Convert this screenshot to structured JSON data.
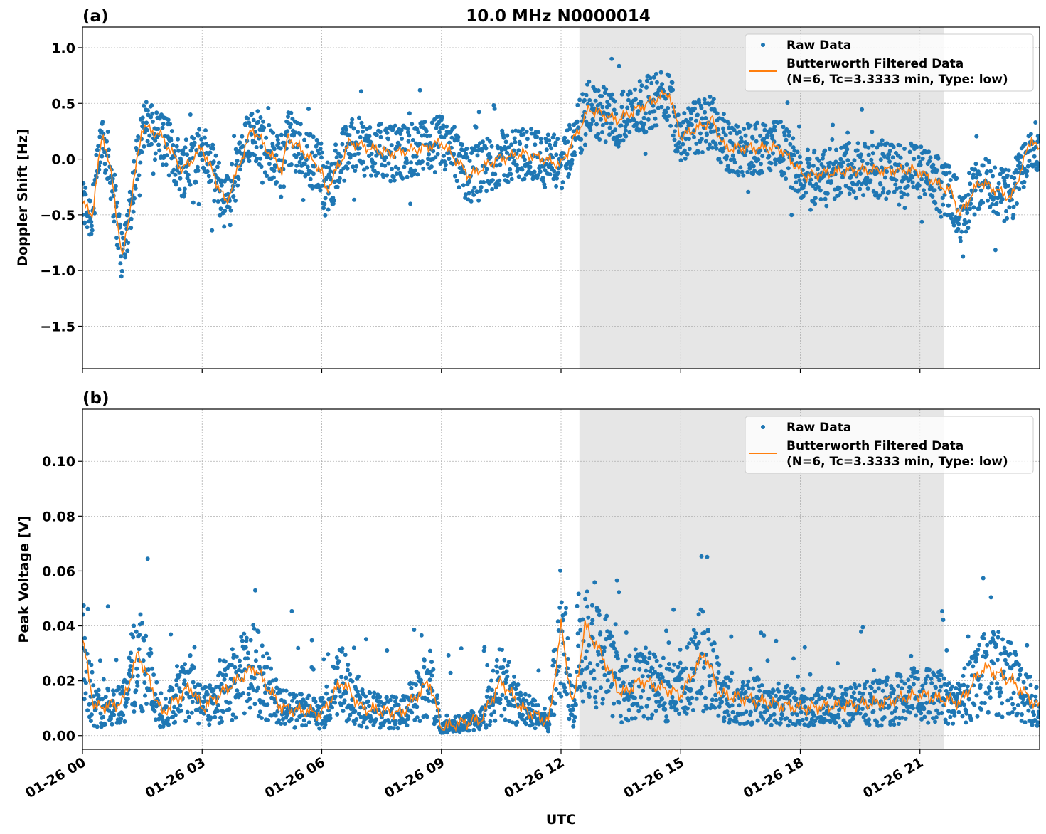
{
  "title": "10.0 MHz N0000014",
  "chart_data": [
    {
      "panel_label": "(a)",
      "type": "scatter+line",
      "ylabel": "Doppler Shift [Hz]",
      "xlabel": "",
      "ylim": [
        -1.88,
        1.185
      ],
      "xlim_hours": [
        0,
        24
      ],
      "yticks": [
        "1.0",
        "0.5",
        "0.0",
        "−0.5",
        "−1.0",
        "−1.5"
      ],
      "ytick_values": [
        1.0,
        0.5,
        0.0,
        -0.5,
        -1.0,
        -1.5
      ],
      "grid": true,
      "shaded_interval_hours": [
        12.46,
        21.6
      ],
      "legend_position": "top-right",
      "legend": [
        "Raw Data",
        "Butterworth Filtered Data",
        "(N=6, Tc=3.3333 min, Type: low)"
      ],
      "series": [
        {
          "name": "Butterworth Filtered Data",
          "color": "#ff7f0e",
          "x": [
            0,
            0.25,
            0.5,
            0.75,
            1,
            1.25,
            1.5,
            2,
            2.5,
            3,
            3.6,
            4.25,
            5,
            5.15,
            6,
            6.1,
            6.7,
            7.7,
            8.6,
            9,
            9.7,
            10.4,
            11.1,
            12,
            12.7,
            13.4,
            14.7,
            15,
            15.8,
            16.1,
            17.5,
            18.1,
            19.3,
            20.9,
            21.8,
            22,
            22.5,
            23.3,
            23.8,
            24
          ],
          "y": [
            -0.4,
            -0.5,
            0.25,
            -0.2,
            -0.9,
            -0.3,
            0.3,
            0.2,
            -0.1,
            0.1,
            -0.4,
            0.28,
            -0.1,
            0.2,
            -0.1,
            -0.3,
            0.15,
            0.05,
            0.1,
            0.15,
            -0.15,
            0.0,
            0.05,
            -0.05,
            0.45,
            0.35,
            0.6,
            0.2,
            0.35,
            0.1,
            0.1,
            -0.15,
            -0.1,
            -0.1,
            -0.3,
            -0.5,
            -0.2,
            -0.35,
            0.2,
            0.05
          ]
        },
        {
          "name": "Raw Data",
          "color": "#1f77b4",
          "spread": 0.25
        }
      ]
    },
    {
      "panel_label": "(b)",
      "type": "scatter+line",
      "ylabel": "Peak Voltage [V]",
      "xlabel": "UTC",
      "ylim": [
        -0.005,
        0.119
      ],
      "xlim_hours": [
        0,
        24
      ],
      "yticks": [
        "0.10",
        "0.08",
        "0.06",
        "0.04",
        "0.02",
        "0.00"
      ],
      "ytick_values": [
        0.1,
        0.08,
        0.06,
        0.04,
        0.02,
        0.0
      ],
      "grid": true,
      "shaded_interval_hours": [
        12.46,
        21.6
      ],
      "legend_position": "top-right",
      "legend": [
        "Raw Data",
        "Butterworth Filtered Data",
        "(N=6, Tc=3.3333 min, Type: low)"
      ],
      "series": [
        {
          "name": "Butterworth Filtered Data",
          "color": "#ff7f0e",
          "x": [
            0,
            0.3,
            1,
            1.4,
            2,
            2.7,
            3,
            4.3,
            5,
            6,
            6.5,
            7,
            8,
            8.7,
            9,
            10,
            10.5,
            11,
            11.7,
            12,
            12.3,
            12.6,
            13,
            13.5,
            14,
            15,
            15.6,
            16,
            18,
            20,
            21,
            22,
            22.6,
            23.3,
            24
          ],
          "y": [
            0.035,
            0.01,
            0.012,
            0.03,
            0.008,
            0.018,
            0.01,
            0.025,
            0.01,
            0.008,
            0.02,
            0.01,
            0.008,
            0.02,
            0.003,
            0.006,
            0.02,
            0.01,
            0.005,
            0.04,
            0.01,
            0.04,
            0.03,
            0.015,
            0.02,
            0.015,
            0.03,
            0.015,
            0.01,
            0.012,
            0.015,
            0.012,
            0.025,
            0.02,
            0.01
          ]
        },
        {
          "name": "Raw Data",
          "color": "#1f77b4",
          "spread": 0.012
        }
      ]
    }
  ],
  "xticks": [
    "01-26 00",
    "01-26 03",
    "01-26 06",
    "01-26 09",
    "01-26 12",
    "01-26 15",
    "01-26 18",
    "01-26 21"
  ],
  "xtick_hours": [
    0,
    3,
    6,
    9,
    12,
    15,
    18,
    21
  ]
}
